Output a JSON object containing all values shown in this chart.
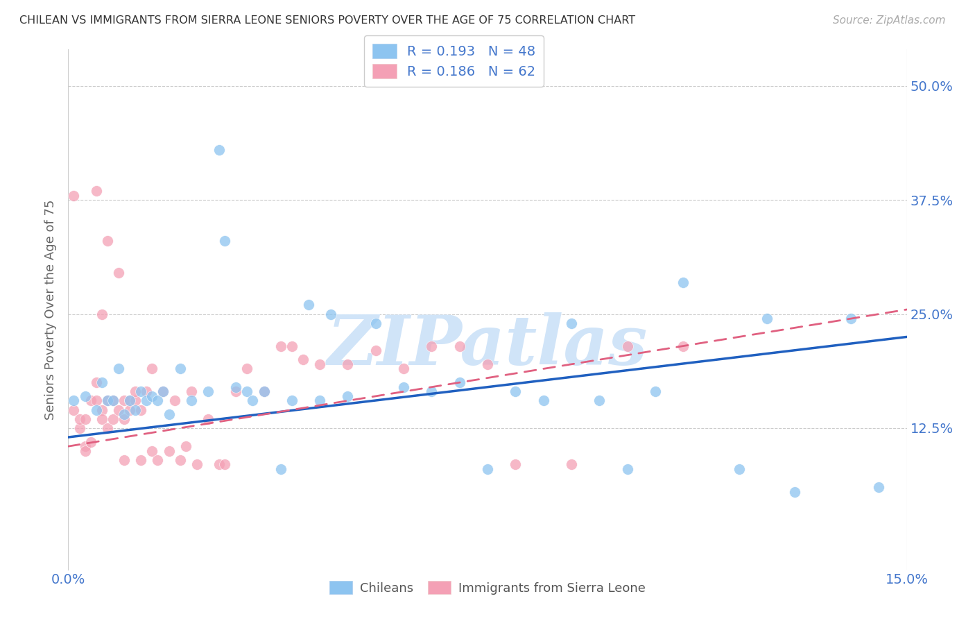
{
  "title": "CHILEAN VS IMMIGRANTS FROM SIERRA LEONE SENIORS POVERTY OVER THE AGE OF 75 CORRELATION CHART",
  "source": "Source: ZipAtlas.com",
  "ylabel": "Seniors Poverty Over the Age of 75",
  "xlim": [
    0.0,
    0.15
  ],
  "ylim": [
    -0.03,
    0.54
  ],
  "yticks": [
    0.125,
    0.25,
    0.375,
    0.5
  ],
  "ytick_labels": [
    "12.5%",
    "25.0%",
    "37.5%",
    "50.0%"
  ],
  "xticks": [
    0.0,
    0.15
  ],
  "xtick_labels": [
    "0.0%",
    "15.0%"
  ],
  "legend_blue": "R = 0.193   N = 48",
  "legend_pink": "R = 0.186   N = 62",
  "legend_label_blue": "Chileans",
  "legend_label_pink": "Immigrants from Sierra Leone",
  "color_blue": "#8DC4F0",
  "color_pink": "#F4A0B5",
  "color_blue_line": "#2060C0",
  "color_pink_line": "#E06080",
  "color_axis_label": "#4477CC",
  "watermark": "ZIPatlas",
  "watermark_color": "#D0E4F8",
  "blue_trend_x0": 0.0,
  "blue_trend_y0": 0.115,
  "blue_trend_x1": 0.15,
  "blue_trend_y1": 0.225,
  "pink_trend_x0": 0.0,
  "pink_trend_y0": 0.105,
  "pink_trend_x1": 0.15,
  "pink_trend_y1": 0.255,
  "blue_x": [
    0.001,
    0.003,
    0.005,
    0.006,
    0.007,
    0.008,
    0.009,
    0.01,
    0.011,
    0.012,
    0.013,
    0.014,
    0.015,
    0.016,
    0.017,
    0.018,
    0.02,
    0.022,
    0.025,
    0.027,
    0.028,
    0.03,
    0.032,
    0.033,
    0.035,
    0.038,
    0.04,
    0.043,
    0.045,
    0.047,
    0.05,
    0.055,
    0.06,
    0.065,
    0.07,
    0.075,
    0.08,
    0.085,
    0.09,
    0.095,
    0.1,
    0.105,
    0.11,
    0.12,
    0.125,
    0.13,
    0.14,
    0.145
  ],
  "blue_y": [
    0.155,
    0.16,
    0.145,
    0.175,
    0.155,
    0.155,
    0.19,
    0.14,
    0.155,
    0.145,
    0.165,
    0.155,
    0.16,
    0.155,
    0.165,
    0.14,
    0.19,
    0.155,
    0.165,
    0.43,
    0.33,
    0.17,
    0.165,
    0.155,
    0.165,
    0.08,
    0.155,
    0.26,
    0.155,
    0.25,
    0.16,
    0.24,
    0.17,
    0.165,
    0.175,
    0.08,
    0.165,
    0.155,
    0.24,
    0.155,
    0.08,
    0.165,
    0.285,
    0.08,
    0.245,
    0.055,
    0.245,
    0.06
  ],
  "pink_x": [
    0.001,
    0.001,
    0.002,
    0.002,
    0.003,
    0.003,
    0.003,
    0.004,
    0.004,
    0.005,
    0.005,
    0.005,
    0.006,
    0.006,
    0.006,
    0.007,
    0.007,
    0.007,
    0.008,
    0.008,
    0.009,
    0.009,
    0.01,
    0.01,
    0.01,
    0.011,
    0.011,
    0.012,
    0.012,
    0.013,
    0.013,
    0.014,
    0.015,
    0.015,
    0.016,
    0.017,
    0.018,
    0.019,
    0.02,
    0.021,
    0.022,
    0.023,
    0.025,
    0.027,
    0.028,
    0.03,
    0.032,
    0.035,
    0.038,
    0.04,
    0.042,
    0.045,
    0.05,
    0.055,
    0.06,
    0.065,
    0.07,
    0.075,
    0.08,
    0.09,
    0.1,
    0.11
  ],
  "pink_y": [
    0.38,
    0.145,
    0.125,
    0.135,
    0.105,
    0.135,
    0.1,
    0.155,
    0.11,
    0.385,
    0.175,
    0.155,
    0.145,
    0.135,
    0.25,
    0.33,
    0.125,
    0.155,
    0.155,
    0.135,
    0.295,
    0.145,
    0.135,
    0.09,
    0.155,
    0.155,
    0.145,
    0.155,
    0.165,
    0.09,
    0.145,
    0.165,
    0.1,
    0.19,
    0.09,
    0.165,
    0.1,
    0.155,
    0.09,
    0.105,
    0.165,
    0.085,
    0.135,
    0.085,
    0.085,
    0.165,
    0.19,
    0.165,
    0.215,
    0.215,
    0.2,
    0.195,
    0.195,
    0.21,
    0.19,
    0.215,
    0.215,
    0.195,
    0.085,
    0.085,
    0.215,
    0.215
  ]
}
